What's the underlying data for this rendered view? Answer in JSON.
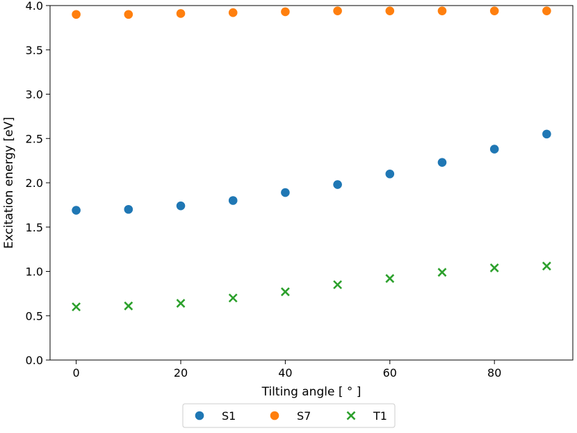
{
  "chart_data": {
    "type": "scatter",
    "xlabel": "Tilting angle [$^\\circ$]",
    "xlabel_display": "Tilting angle [ ° ]",
    "ylabel": "Excitation energy [eV]",
    "xlim": [
      -5,
      95
    ],
    "ylim": [
      0.0,
      4.0
    ],
    "xticks": [
      0,
      20,
      40,
      60,
      80
    ],
    "xtick_labels": [
      "0",
      "20",
      "40",
      "60",
      "80"
    ],
    "yticks": [
      0.0,
      0.5,
      1.0,
      1.5,
      2.0,
      2.5,
      3.0,
      3.5,
      4.0
    ],
    "ytick_labels": [
      "0.0",
      "0.5",
      "1.0",
      "1.5",
      "2.0",
      "2.5",
      "3.0",
      "3.5",
      "4.0"
    ],
    "grid": false,
    "legend_position": "bottom-center, outside",
    "x": [
      0,
      10,
      20,
      30,
      40,
      50,
      60,
      70,
      80,
      90
    ],
    "series": [
      {
        "name": "S1",
        "marker": "circle",
        "color": "#1f77b4",
        "values": [
          1.69,
          1.7,
          1.74,
          1.8,
          1.89,
          1.98,
          2.1,
          2.23,
          2.38,
          2.55
        ]
      },
      {
        "name": "S7",
        "marker": "circle",
        "color": "#ff7f0e",
        "values": [
          3.9,
          3.9,
          3.91,
          3.92,
          3.93,
          3.94,
          3.94,
          3.94,
          3.94,
          3.94
        ]
      },
      {
        "name": "T1",
        "marker": "x",
        "color": "#2ca02c",
        "values": [
          0.6,
          0.61,
          0.64,
          0.7,
          0.77,
          0.85,
          0.92,
          0.99,
          1.04,
          1.06
        ]
      }
    ]
  }
}
